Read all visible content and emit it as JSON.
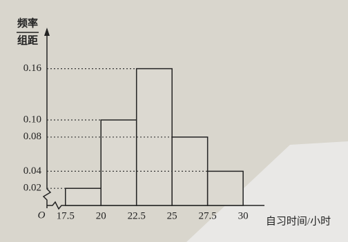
{
  "chart_data": {
    "type": "histogram",
    "ylabel": {
      "numerator": "频率",
      "denominator": "组距"
    },
    "xlabel": "自习时间/小时",
    "origin_label": "O",
    "bins": [
      17.5,
      20,
      22.5,
      25,
      27.5,
      30
    ],
    "values": [
      0.02,
      0.1,
      0.16,
      0.08,
      0.04
    ],
    "color": "#dcd9d1",
    "xlim": [
      16.2,
      31.5
    ],
    "ylim": [
      0,
      0.2
    ],
    "xticks": [
      17.5,
      20,
      22.5,
      25,
      27.5,
      30
    ],
    "yticks": [
      0.02,
      0.04,
      0.08,
      {
        "value": 0.1,
        "label": "0.10"
      },
      0.16
    ]
  }
}
